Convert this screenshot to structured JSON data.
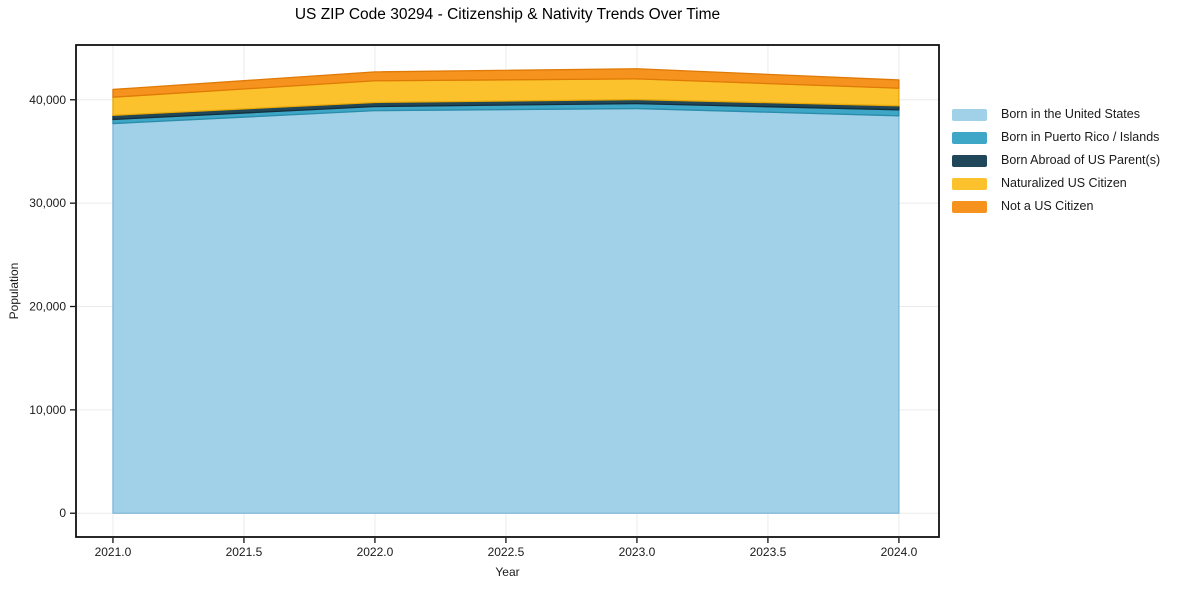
{
  "figure": {
    "background": "#ffffff",
    "grid_color": "#ebebeb",
    "spine_color": "#111111",
    "text_color": "#1a1a1a"
  },
  "chart_data": {
    "type": "area",
    "stacked": true,
    "title": "US ZIP Code 30294 - Citizenship & Nativity Trends Over Time",
    "xlabel": "Year",
    "ylabel": "Population",
    "x": [
      2021,
      2022,
      2023,
      2024
    ],
    "series": [
      {
        "name": "Born in the United States",
        "values": [
          37700,
          38950,
          39150,
          38450
        ],
        "color": "#a1d1e8",
        "edge_color": "#7fb9d8"
      },
      {
        "name": "Born in Puerto Rico / Islands",
        "values": [
          400,
          400,
          480,
          580
        ],
        "color": "#3ea6c6",
        "edge_color": "#2b8cab"
      },
      {
        "name": "Born Abroad of US Parent(s)",
        "values": [
          400,
          390,
          390,
          390
        ],
        "color": "#1f4759",
        "edge_color": "#142f3c"
      },
      {
        "name": "Naturalized US Citizen",
        "values": [
          1750,
          2100,
          2000,
          1700
        ],
        "color": "#fcc22d",
        "edge_color": "#e8a908"
      },
      {
        "name": "Not a US Citizen",
        "values": [
          750,
          860,
          980,
          800
        ],
        "color": "#f6921e",
        "edge_color": "#e07a07"
      }
    ],
    "xlim": [
      2020.859,
      2024.153
    ],
    "ylim": [
      -2300,
      45300
    ],
    "xticks": [
      {
        "v": 2021.0,
        "label": "2021.0"
      },
      {
        "v": 2021.5,
        "label": "2021.5"
      },
      {
        "v": 2022.0,
        "label": "2022.0"
      },
      {
        "v": 2022.5,
        "label": "2022.5"
      },
      {
        "v": 2023.0,
        "label": "2023.0"
      },
      {
        "v": 2023.5,
        "label": "2023.5"
      },
      {
        "v": 2024.0,
        "label": "2024.0"
      }
    ],
    "yticks": [
      {
        "v": 0,
        "label": "0"
      },
      {
        "v": 10000,
        "label": "10,000"
      },
      {
        "v": 20000,
        "label": "20,000"
      },
      {
        "v": 30000,
        "label": "30,000"
      },
      {
        "v": 40000,
        "label": "40,000"
      }
    ],
    "grid": true,
    "legend_position": "right-outside"
  }
}
